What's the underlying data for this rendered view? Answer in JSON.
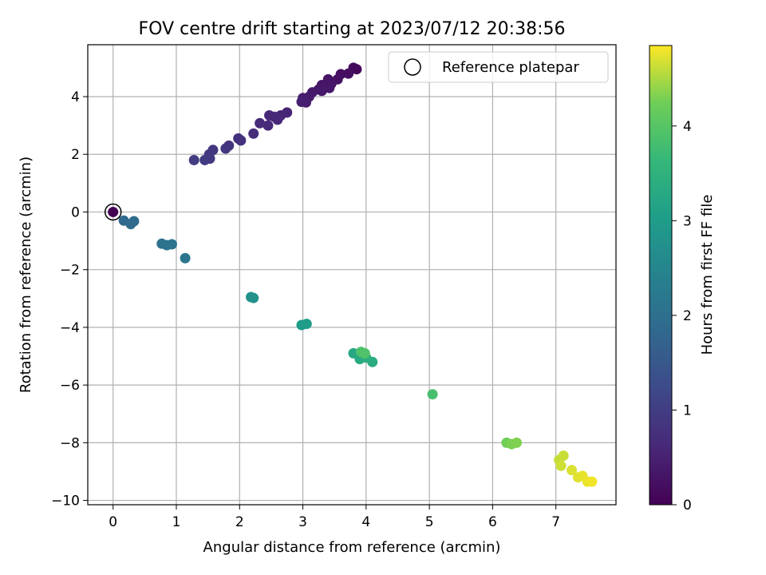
{
  "chart_data": {
    "type": "scatter",
    "title": "FOV centre drift starting at 2023/07/12 20:38:56",
    "xlabel": "Angular distance from reference (arcmin)",
    "ylabel": "Rotation from reference (arcmin)",
    "xlim": [
      -0.4,
      7.95
    ],
    "ylim": [
      -10.15,
      5.8
    ],
    "xticks": [
      0,
      1,
      2,
      3,
      4,
      5,
      6,
      7
    ],
    "yticks": [
      -10,
      -8,
      -6,
      -4,
      -2,
      0,
      2,
      4
    ],
    "grid": true,
    "legend": {
      "position": "top-right",
      "entries": [
        "Reference platepar"
      ]
    },
    "colorbar": {
      "label": "Hours from first FF file",
      "min": 0,
      "max": 4.85,
      "ticks": [
        0,
        1,
        2,
        3,
        4
      ],
      "colormap": "viridis"
    },
    "reference_point": {
      "x": 0,
      "y": 0
    },
    "series": [
      {
        "points": [
          {
            "x": 0.0,
            "y": 0.0,
            "c": 0.0
          },
          {
            "x": 3.8,
            "y": 5.0,
            "c": 0.15
          },
          {
            "x": 3.85,
            "y": 4.95,
            "c": 0.12
          },
          {
            "x": 3.72,
            "y": 4.8,
            "c": 0.2
          },
          {
            "x": 3.6,
            "y": 4.78,
            "c": 0.22
          },
          {
            "x": 3.55,
            "y": 4.6,
            "c": 0.25
          },
          {
            "x": 3.4,
            "y": 4.6,
            "c": 0.28
          },
          {
            "x": 3.45,
            "y": 4.45,
            "c": 0.3
          },
          {
            "x": 3.3,
            "y": 4.4,
            "c": 0.32
          },
          {
            "x": 3.25,
            "y": 4.25,
            "c": 0.35
          },
          {
            "x": 3.42,
            "y": 4.3,
            "c": 0.33
          },
          {
            "x": 3.15,
            "y": 4.15,
            "c": 0.38
          },
          {
            "x": 3.3,
            "y": 4.2,
            "c": 0.36
          },
          {
            "x": 3.1,
            "y": 4.0,
            "c": 0.4
          },
          {
            "x": 3.0,
            "y": 3.95,
            "c": 0.42
          },
          {
            "x": 3.05,
            "y": 3.8,
            "c": 0.45
          },
          {
            "x": 2.98,
            "y": 3.82,
            "c": 0.47
          },
          {
            "x": 2.75,
            "y": 3.45,
            "c": 0.55
          },
          {
            "x": 2.65,
            "y": 3.35,
            "c": 0.58
          },
          {
            "x": 2.55,
            "y": 3.3,
            "c": 0.6
          },
          {
            "x": 2.47,
            "y": 3.35,
            "c": 0.62
          },
          {
            "x": 2.6,
            "y": 3.2,
            "c": 0.63
          },
          {
            "x": 2.45,
            "y": 3.0,
            "c": 0.66
          },
          {
            "x": 2.32,
            "y": 3.08,
            "c": 0.68
          },
          {
            "x": 2.22,
            "y": 2.72,
            "c": 0.72
          },
          {
            "x": 2.02,
            "y": 2.48,
            "c": 0.77
          },
          {
            "x": 1.98,
            "y": 2.55,
            "c": 0.78
          },
          {
            "x": 1.83,
            "y": 2.3,
            "c": 0.82
          },
          {
            "x": 1.78,
            "y": 2.2,
            "c": 0.84
          },
          {
            "x": 1.58,
            "y": 2.15,
            "c": 0.88
          },
          {
            "x": 1.52,
            "y": 2.0,
            "c": 0.9
          },
          {
            "x": 1.53,
            "y": 1.85,
            "c": 0.92
          },
          {
            "x": 1.45,
            "y": 1.8,
            "c": 0.95
          },
          {
            "x": 1.28,
            "y": 1.8,
            "c": 0.98
          },
          {
            "x": 0.17,
            "y": -0.3,
            "c": 1.85
          },
          {
            "x": 0.33,
            "y": -0.32,
            "c": 1.88
          },
          {
            "x": 0.28,
            "y": -0.42,
            "c": 1.9
          },
          {
            "x": 0.77,
            "y": -1.1,
            "c": 2.05
          },
          {
            "x": 0.85,
            "y": -1.15,
            "c": 2.08
          },
          {
            "x": 0.93,
            "y": -1.12,
            "c": 2.1
          },
          {
            "x": 1.14,
            "y": -1.6,
            "c": 2.15
          },
          {
            "x": 2.18,
            "y": -2.95,
            "c": 2.75
          },
          {
            "x": 2.22,
            "y": -2.98,
            "c": 2.77
          },
          {
            "x": 2.98,
            "y": -3.92,
            "c": 3.0
          },
          {
            "x": 3.06,
            "y": -3.88,
            "c": 3.02
          },
          {
            "x": 3.8,
            "y": -4.9,
            "c": 3.25
          },
          {
            "x": 3.9,
            "y": -5.1,
            "c": 3.3
          },
          {
            "x": 4.1,
            "y": -5.2,
            "c": 3.35
          },
          {
            "x": 4.0,
            "y": -5.05,
            "c": 3.4
          },
          {
            "x": 3.92,
            "y": -4.85,
            "c": 3.9
          },
          {
            "x": 3.98,
            "y": -4.9,
            "c": 3.92
          },
          {
            "x": 5.05,
            "y": -6.32,
            "c": 3.85
          },
          {
            "x": 6.22,
            "y": -8.0,
            "c": 4.25
          },
          {
            "x": 6.3,
            "y": -8.05,
            "c": 4.3
          },
          {
            "x": 6.38,
            "y": -8.0,
            "c": 4.32
          },
          {
            "x": 7.05,
            "y": -8.6,
            "c": 4.6
          },
          {
            "x": 7.12,
            "y": -8.45,
            "c": 4.62
          },
          {
            "x": 7.08,
            "y": -8.8,
            "c": 4.65
          },
          {
            "x": 7.25,
            "y": -8.95,
            "c": 4.7
          },
          {
            "x": 7.35,
            "y": -9.2,
            "c": 4.72
          },
          {
            "x": 7.42,
            "y": -9.15,
            "c": 4.75
          },
          {
            "x": 7.5,
            "y": -9.35,
            "c": 4.78
          },
          {
            "x": 7.57,
            "y": -9.35,
            "c": 4.8
          }
        ]
      }
    ]
  }
}
